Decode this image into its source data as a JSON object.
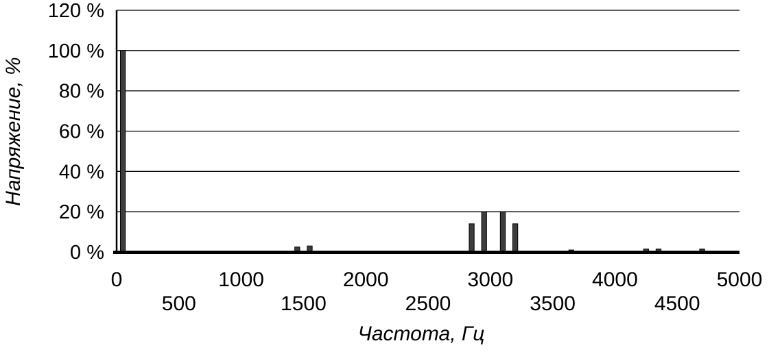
{
  "chart_data": {
    "type": "bar",
    "title": "",
    "xlabel": "Частота, Гц",
    "ylabel": "Напряжение, %",
    "xlim": [
      0,
      5000
    ],
    "ylim": [
      0,
      120
    ],
    "grid": true,
    "legend_position": "none",
    "y_ticks": [
      {
        "value": 0,
        "label": "0 %"
      },
      {
        "value": 20,
        "label": "20 %"
      },
      {
        "value": 40,
        "label": "40 %"
      },
      {
        "value": 60,
        "label": "60 %"
      },
      {
        "value": 80,
        "label": "80 %"
      },
      {
        "value": 100,
        "label": "100 %"
      },
      {
        "value": 120,
        "label": "120 %"
      }
    ],
    "x_ticks_upper": [
      "0",
      "1000",
      "2000",
      "3000",
      "4000",
      "5000"
    ],
    "x_ticks_upper_values": [
      0,
      1000,
      2000,
      3000,
      4000,
      5000
    ],
    "x_ticks_lower": [
      "500",
      "1500",
      "2500",
      "3500",
      "4500"
    ],
    "x_ticks_lower_values": [
      500,
      1500,
      2500,
      3500,
      4500
    ],
    "bar_width_hz": 40,
    "bars": [
      {
        "freq_hz": 50,
        "voltage_pct": 100
      },
      {
        "freq_hz": 1450,
        "voltage_pct": 2.5
      },
      {
        "freq_hz": 1550,
        "voltage_pct": 3
      },
      {
        "freq_hz": 2850,
        "voltage_pct": 14
      },
      {
        "freq_hz": 2950,
        "voltage_pct": 20
      },
      {
        "freq_hz": 3100,
        "voltage_pct": 20
      },
      {
        "freq_hz": 3200,
        "voltage_pct": 14
      },
      {
        "freq_hz": 3650,
        "voltage_pct": 1
      },
      {
        "freq_hz": 4250,
        "voltage_pct": 1.5
      },
      {
        "freq_hz": 4350,
        "voltage_pct": 1.5
      },
      {
        "freq_hz": 4700,
        "voltage_pct": 1.5
      }
    ],
    "colors": {
      "background": "#ffffff",
      "bar_fill": "#3d3d3d",
      "bar_stroke": "#000000",
      "axis": "#000000",
      "grid": "#000000",
      "text": "#000000"
    }
  }
}
